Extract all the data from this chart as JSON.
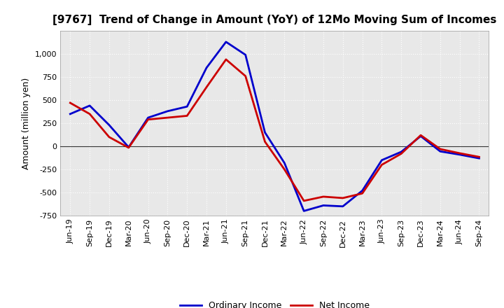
{
  "title": "[9767]  Trend of Change in Amount (YoY) of 12Mo Moving Sum of Incomes",
  "ylabel": "Amount (million yen)",
  "xlabels": [
    "Jun-19",
    "Sep-19",
    "Dec-19",
    "Mar-20",
    "Jun-20",
    "Sep-20",
    "Dec-20",
    "Mar-21",
    "Jun-21",
    "Sep-21",
    "Dec-21",
    "Mar-22",
    "Jun-22",
    "Sep-22",
    "Dec-22",
    "Mar-23",
    "Jun-23",
    "Sep-23",
    "Dec-23",
    "Mar-24",
    "Jun-24",
    "Sep-24"
  ],
  "ordinary_income": [
    350,
    440,
    230,
    -10,
    310,
    380,
    430,
    850,
    1130,
    990,
    150,
    -180,
    -700,
    -640,
    -650,
    -480,
    -150,
    -60,
    110,
    -55,
    -90,
    -130
  ],
  "net_income": [
    470,
    350,
    100,
    -15,
    290,
    310,
    330,
    640,
    940,
    760,
    50,
    -250,
    -590,
    -545,
    -560,
    -510,
    -200,
    -80,
    120,
    -30,
    -75,
    -115
  ],
  "ordinary_color": "#0000cc",
  "net_color": "#cc0000",
  "ylim": [
    -750,
    1250
  ],
  "yticks": [
    -750,
    -500,
    -250,
    0,
    250,
    500,
    750,
    1000
  ],
  "plot_bg_color": "#e8e8e8",
  "fig_bg_color": "#ffffff",
  "grid_color": "#ffffff",
  "zero_line_color": "#333333",
  "legend_labels": [
    "Ordinary Income",
    "Net Income"
  ],
  "title_fontsize": 11,
  "ylabel_fontsize": 9,
  "tick_fontsize": 8
}
